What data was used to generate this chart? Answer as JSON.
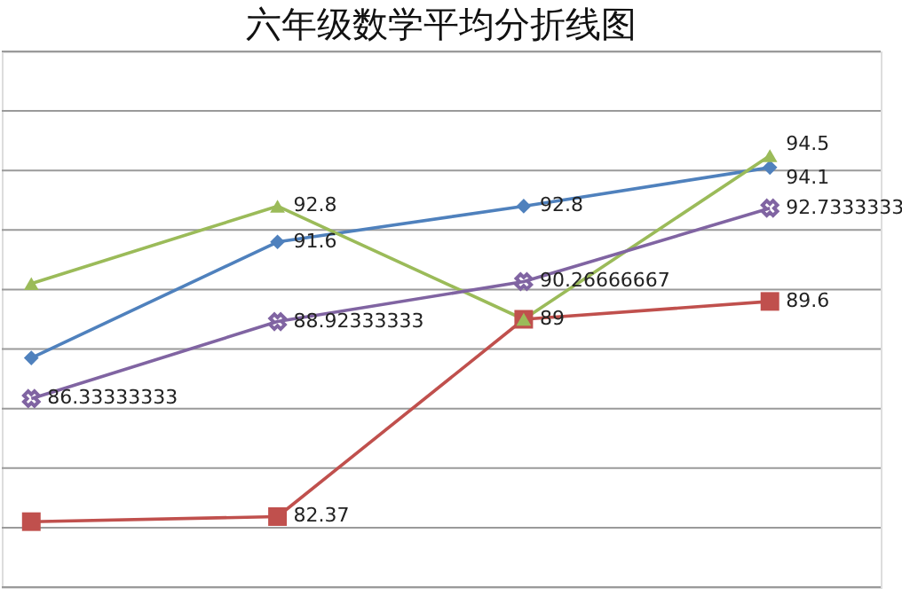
{
  "chart_data": {
    "type": "line",
    "title": "六年级数学平均分折线图",
    "categories": [
      null,
      null,
      null,
      null
    ],
    "series": [
      {
        "color": "#4f81bd",
        "marker": "diamond",
        "values": [
          87.7,
          91.6,
          92.8,
          94.1
        ],
        "value_labels": [
          null,
          "91.6",
          "92.8",
          "94.1"
        ]
      },
      {
        "color": "#c0504d",
        "marker": "square",
        "values": [
          82.2,
          82.37,
          89,
          89.6
        ],
        "value_labels": [
          null,
          "82.37",
          null,
          "89.6"
        ]
      },
      {
        "color": "#9bbb59",
        "marker": "triangle",
        "values": [
          90.2,
          92.8,
          89,
          94.5
        ],
        "value_labels": [
          null,
          "92.8",
          "89",
          "94.5"
        ]
      },
      {
        "color": "#8064a2",
        "marker": "cross",
        "values": [
          86.33333333,
          88.92333333,
          90.26666667,
          92.73333333
        ],
        "value_labels": [
          "86.33333333",
          "88.92333333",
          "90.26666667",
          "92.7333333"
        ]
      }
    ],
    "ylim": [
      80,
      98
    ],
    "yticks": [
      80,
      82,
      84,
      86,
      88,
      90,
      92,
      94,
      96,
      98
    ],
    "tick_labels": false,
    "grid": "y",
    "legend": false,
    "line_style": "solid"
  }
}
